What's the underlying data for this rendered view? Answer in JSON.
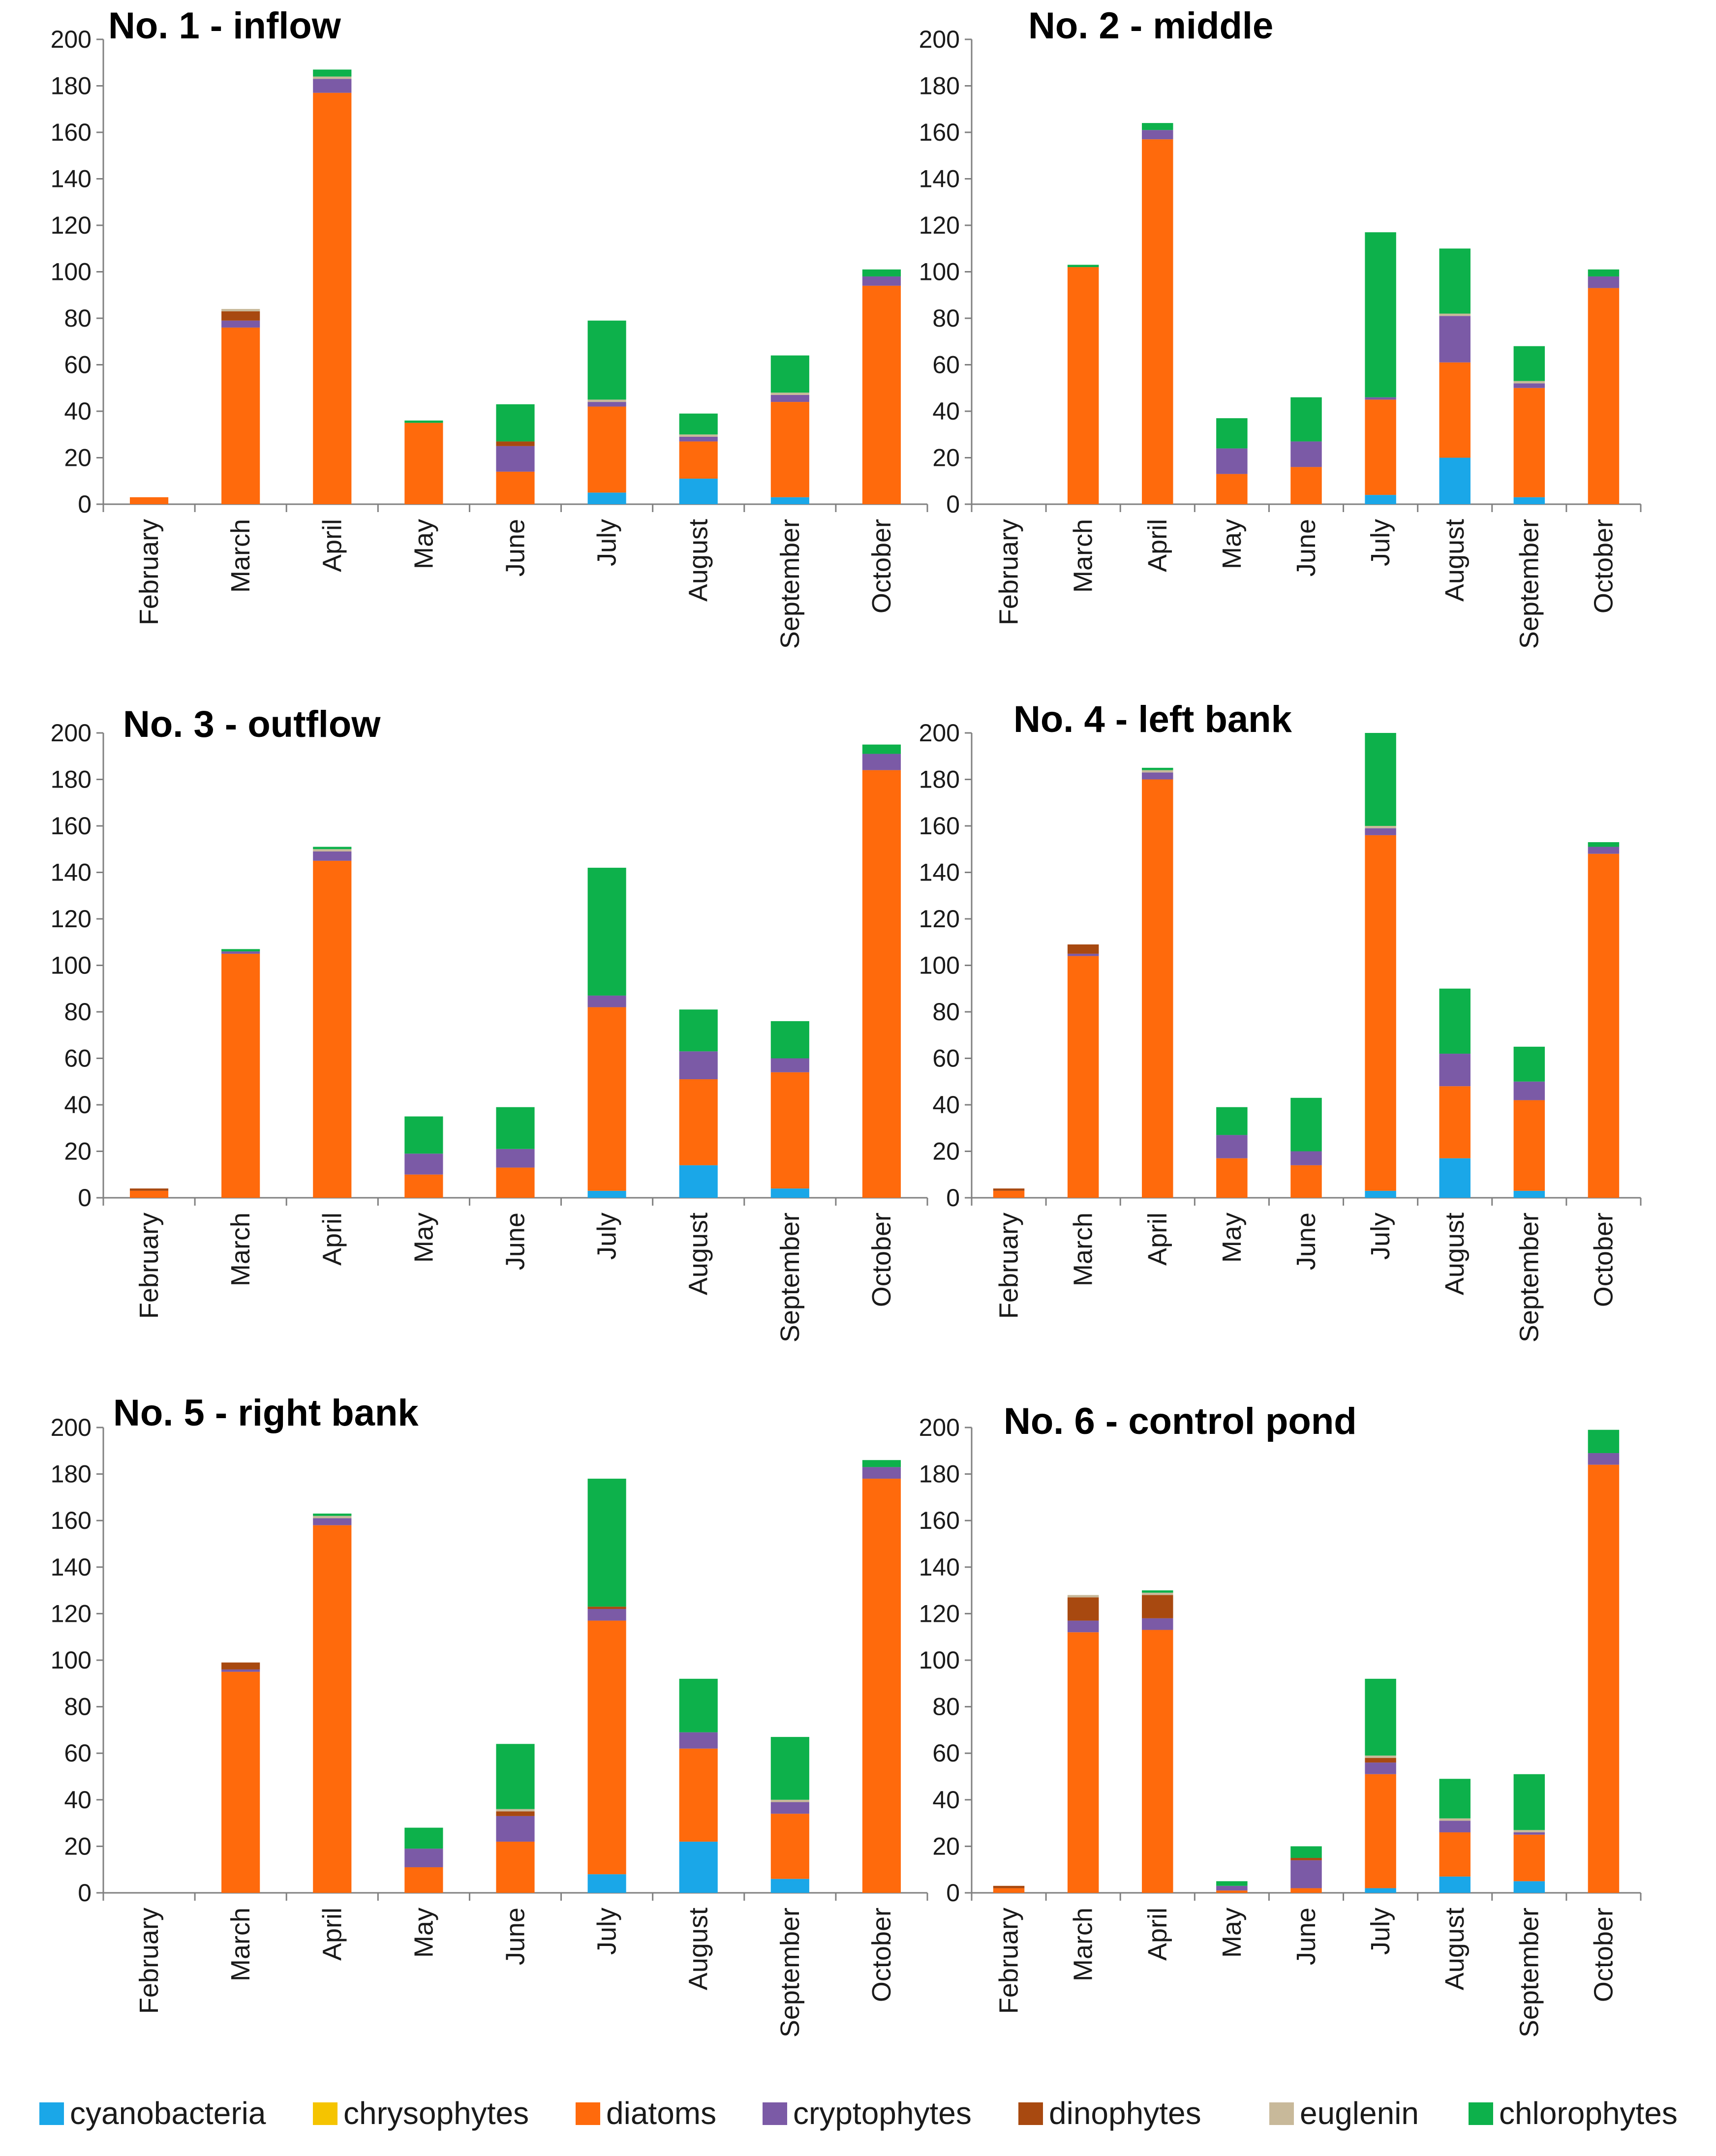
{
  "chart_data": {
    "type": "bar",
    "stacked": true,
    "categories": [
      "February",
      "March",
      "April",
      "May",
      "June",
      "July",
      "August",
      "September",
      "October"
    ],
    "series": [
      {
        "key": "cyanobacteria",
        "name": "cyanobacteria",
        "color": "#1aa7e8"
      },
      {
        "key": "chrysophytes",
        "name": "chrysophytes",
        "color": "#f5c400"
      },
      {
        "key": "diatoms",
        "name": "diatoms",
        "color": "#ff6a0c"
      },
      {
        "key": "cryptophytes",
        "name": "cryptophytes",
        "color": "#7b5aa6"
      },
      {
        "key": "dinophytes",
        "name": "dinophytes",
        "color": "#a84910"
      },
      {
        "key": "euglenin",
        "name": "euglenin",
        "color": "#c8b99a"
      },
      {
        "key": "chlorophytes",
        "name": "chlorophytes",
        "color": "#0db14b"
      }
    ],
    "yticks": [
      "0",
      "20",
      "40",
      "60",
      "80",
      "100",
      "120",
      "140",
      "160",
      "180",
      "200"
    ],
    "ylim": [
      0,
      200
    ],
    "legend_position": "bottom",
    "panels": [
      {
        "title": "No. 1 - inflow",
        "values": {
          "cyanobacteria": [
            0,
            0,
            0,
            0,
            0,
            5,
            11,
            3,
            0
          ],
          "chrysophytes": [
            0,
            0,
            0,
            0,
            0,
            0,
            0,
            0,
            0
          ],
          "diatoms": [
            3,
            76,
            177,
            35,
            14,
            37,
            16,
            41,
            94
          ],
          "cryptophytes": [
            0,
            3,
            6,
            0,
            11,
            2,
            2,
            3,
            4
          ],
          "dinophytes": [
            0,
            4,
            0,
            0,
            2,
            0,
            0,
            0,
            0
          ],
          "euglenin": [
            0,
            1,
            1,
            0,
            0,
            1,
            1,
            1,
            0
          ],
          "chlorophytes": [
            0,
            0,
            3,
            1,
            16,
            34,
            9,
            16,
            3
          ]
        }
      },
      {
        "title": "No. 2 - middle",
        "values": {
          "cyanobacteria": [
            0,
            0,
            0,
            0,
            0,
            4,
            20,
            3,
            0
          ],
          "chrysophytes": [
            0,
            0,
            0,
            0,
            0,
            0,
            0,
            0,
            0
          ],
          "diatoms": [
            0,
            102,
            157,
            13,
            16,
            41,
            41,
            47,
            93
          ],
          "cryptophytes": [
            0,
            0,
            4,
            11,
            11,
            1,
            20,
            2,
            5
          ],
          "dinophytes": [
            0,
            0,
            0,
            0,
            0,
            0,
            0,
            0,
            0
          ],
          "euglenin": [
            0,
            0,
            0,
            0,
            0,
            0,
            1,
            1,
            0
          ],
          "chlorophytes": [
            0,
            1,
            3,
            13,
            19,
            71,
            28,
            15,
            3
          ]
        }
      },
      {
        "title": "No. 3 - outflow",
        "values": {
          "cyanobacteria": [
            0,
            0,
            0,
            0,
            0,
            3,
            14,
            4,
            0
          ],
          "chrysophytes": [
            0,
            0,
            0,
            0,
            0,
            0,
            0,
            0,
            0
          ],
          "diatoms": [
            3,
            105,
            145,
            10,
            13,
            79,
            37,
            50,
            184
          ],
          "cryptophytes": [
            0,
            1,
            4,
            9,
            8,
            5,
            12,
            6,
            7
          ],
          "dinophytes": [
            1,
            0,
            0,
            0,
            0,
            0,
            0,
            0,
            0
          ],
          "euglenin": [
            0,
            0,
            1,
            0,
            0,
            0,
            0,
            0,
            0
          ],
          "chlorophytes": [
            0,
            1,
            1,
            16,
            18,
            55,
            18,
            16,
            4
          ]
        }
      },
      {
        "title": "No. 4 - left bank",
        "values": {
          "cyanobacteria": [
            0,
            0,
            0,
            0,
            0,
            3,
            17,
            3,
            0
          ],
          "chrysophytes": [
            0,
            0,
            0,
            0,
            0,
            0,
            0,
            0,
            0
          ],
          "diatoms": [
            3,
            104,
            180,
            17,
            14,
            153,
            31,
            39,
            148
          ],
          "cryptophytes": [
            0,
            1,
            3,
            10,
            6,
            3,
            14,
            8,
            3
          ],
          "dinophytes": [
            1,
            4,
            0,
            0,
            0,
            0,
            0,
            0,
            0
          ],
          "euglenin": [
            0,
            0,
            1,
            0,
            0,
            1,
            0,
            0,
            0
          ],
          "chlorophytes": [
            0,
            0,
            1,
            12,
            23,
            40,
            28,
            15,
            2
          ]
        }
      },
      {
        "title": "No. 5 - right bank",
        "values": {
          "cyanobacteria": [
            0,
            0,
            0,
            0,
            0,
            8,
            22,
            6,
            0
          ],
          "chrysophytes": [
            0,
            0,
            0,
            0,
            0,
            0,
            0,
            0,
            0
          ],
          "diatoms": [
            0,
            95,
            158,
            11,
            22,
            109,
            40,
            28,
            178
          ],
          "cryptophytes": [
            0,
            1,
            3,
            8,
            11,
            5,
            7,
            5,
            5
          ],
          "dinophytes": [
            0,
            3,
            0,
            0,
            2,
            1,
            0,
            0,
            0
          ],
          "euglenin": [
            0,
            0,
            1,
            0,
            1,
            0,
            0,
            1,
            0
          ],
          "chlorophytes": [
            0,
            0,
            1,
            9,
            28,
            55,
            23,
            27,
            3
          ]
        }
      },
      {
        "title": "No. 6 - control pond",
        "values": {
          "cyanobacteria": [
            0,
            0,
            0,
            0,
            0,
            2,
            7,
            5,
            0
          ],
          "chrysophytes": [
            0,
            0,
            0,
            0,
            0,
            0,
            0,
            0,
            0
          ],
          "diatoms": [
            2,
            112,
            113,
            1,
            2,
            49,
            19,
            20,
            184
          ],
          "cryptophytes": [
            0,
            5,
            5,
            2,
            12,
            5,
            5,
            1,
            5
          ],
          "dinophytes": [
            1,
            10,
            10,
            0,
            1,
            2,
            0,
            0,
            0
          ],
          "euglenin": [
            0,
            1,
            1,
            0,
            0,
            1,
            1,
            1,
            0
          ],
          "chlorophytes": [
            0,
            0,
            1,
            2,
            5,
            33,
            17,
            24,
            10
          ]
        }
      }
    ]
  }
}
